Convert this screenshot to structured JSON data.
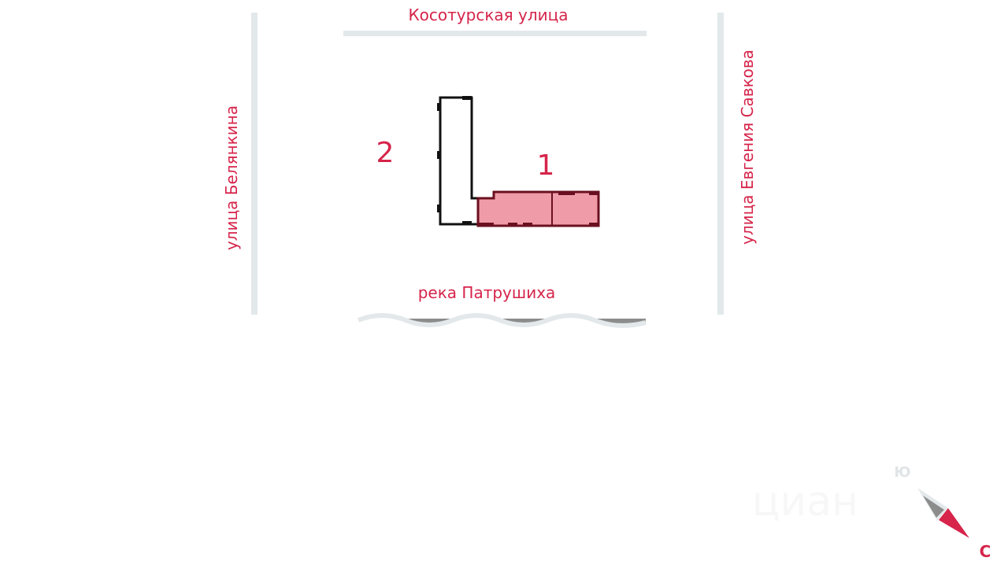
{
  "streets": {
    "top": "Косотурская  улица",
    "left": "улица  Белянкина",
    "right": "улица  Евгения  Савкова",
    "bottom": "река  Патрушиха"
  },
  "buildings": [
    {
      "number": "1",
      "highlighted": true
    },
    {
      "number": "2",
      "highlighted": false
    }
  ],
  "compass": {
    "north": "С",
    "south": "Ю"
  },
  "watermark": "циан",
  "colors": {
    "accent": "#d6244a",
    "highlight_fill": "#f09ca8",
    "highlight_stroke": "#6b1020",
    "road": "#e3e8ea",
    "river": "#8c8c8c"
  }
}
